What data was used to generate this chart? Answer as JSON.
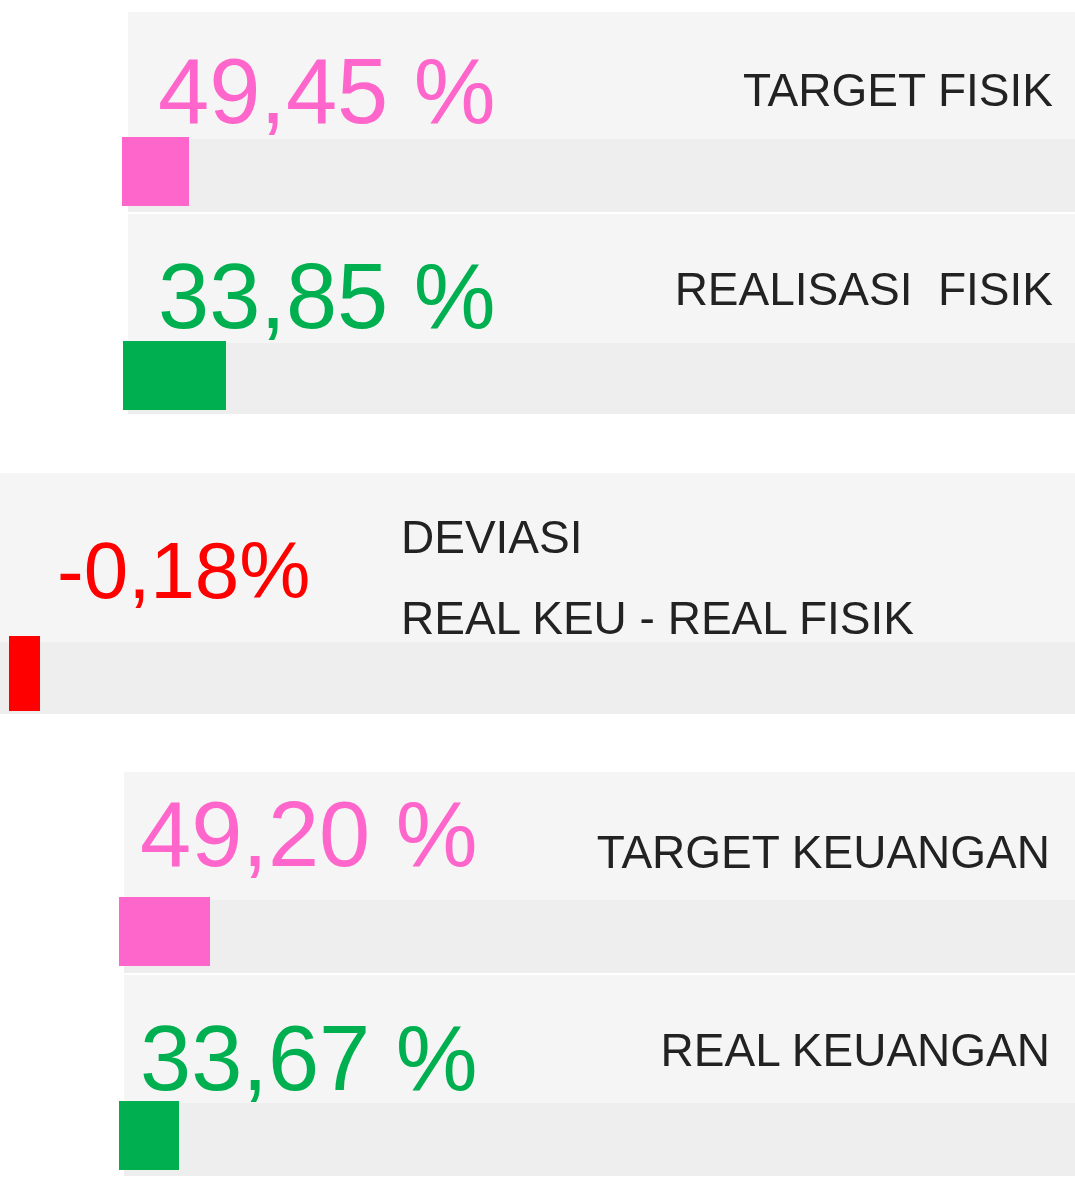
{
  "chart_data": {
    "type": "other",
    "categories": [
      "TARGET FISIK",
      "REALISASI  FISIK",
      "DEVIASI\nREAL KEU - REAL FISIK",
      "TARGET KEUANGAN",
      "REAL KEUANGAN"
    ],
    "values": [
      49.45,
      33.85,
      -0.18,
      49.2,
      33.67
    ],
    "value_labels": [
      "49,45 %",
      "33,85 %",
      "-0,18%",
      "49,20 %",
      "33,67 %"
    ],
    "colors": [
      "#ff66cc",
      "#00b050",
      "#ff0000",
      "#ff66cc",
      "#00b050"
    ]
  }
}
